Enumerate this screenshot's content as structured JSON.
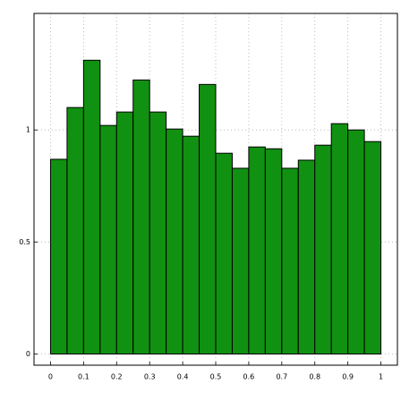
{
  "chart_data": {
    "type": "histogram",
    "bins": [
      0,
      0.05,
      0.1,
      0.15,
      0.2,
      0.25,
      0.3,
      0.35,
      0.4,
      0.45,
      0.5,
      0.55,
      0.6,
      0.65,
      0.7,
      0.75,
      0.8,
      0.85,
      0.9,
      0.95,
      1
    ],
    "values": [
      0.869,
      1.1,
      1.311,
      1.02,
      1.08,
      1.223,
      1.08,
      1.004,
      0.972,
      1.203,
      0.896,
      0.829,
      0.924,
      0.916,
      0.829,
      0.865,
      0.932,
      1.028,
      1.0,
      0.948
    ],
    "color": "#119111",
    "xlim": [
      -0.05,
      1.05
    ],
    "ylim": [
      -0.05,
      1.52
    ],
    "xticks": [
      0,
      0.1,
      0.2,
      0.3,
      0.4,
      0.5,
      0.6,
      0.7,
      0.8,
      0.9,
      1
    ],
    "yticks": [
      0,
      0.5,
      1
    ],
    "grid": true
  }
}
